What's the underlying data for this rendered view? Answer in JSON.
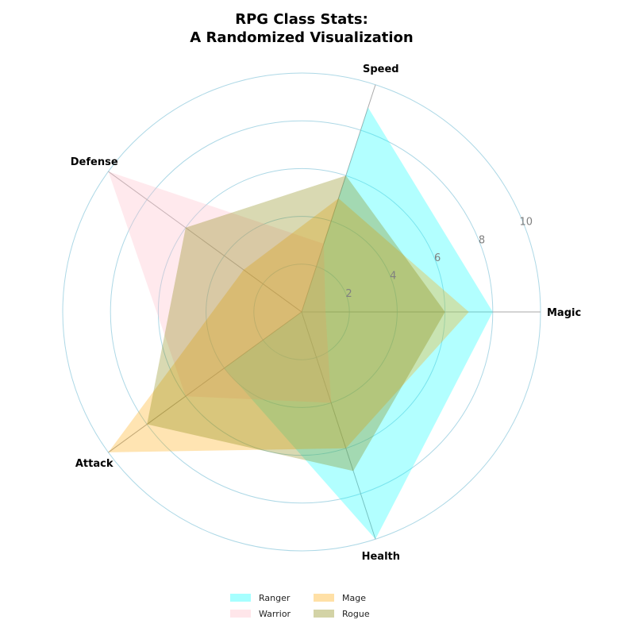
{
  "chart_data": {
    "type": "radar",
    "title_lines": [
      "RPG Class Stats:",
      "A Randomized Visualization"
    ],
    "categories": [
      "Magic",
      "Speed",
      "Defense",
      "Attack",
      "Health"
    ],
    "rlim": [
      0,
      10
    ],
    "rticks": [
      2,
      4,
      6,
      8,
      10
    ],
    "grid": true,
    "legend_position": "bottom",
    "series": [
      {
        "name": "Ranger",
        "values": [
          8,
          9,
          0,
          4,
          10
        ],
        "color": "#00ffff",
        "opacity": 0.3
      },
      {
        "name": "Warrior",
        "values": [
          1,
          3,
          10,
          6,
          4
        ],
        "color": "#ffc0cb",
        "opacity": 0.35
      },
      {
        "name": "Mage",
        "values": [
          7,
          5,
          3,
          10,
          6
        ],
        "color": "#ffa500",
        "opacity": 0.3
      },
      {
        "name": "Rogue",
        "values": [
          6,
          6,
          6,
          8,
          7
        ],
        "color": "#808000",
        "opacity": 0.3
      }
    ],
    "colors": {
      "grid": "#add8e6",
      "spoke": "#aaaaaa",
      "tick": "#808080"
    }
  }
}
